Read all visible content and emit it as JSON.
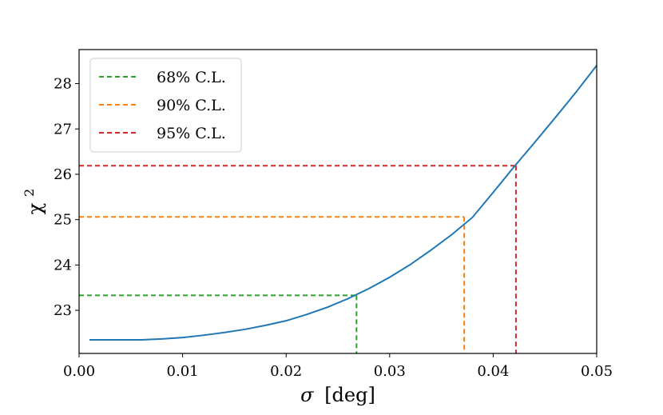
{
  "chart_data": {
    "type": "line",
    "xlabel_symbol": "σ",
    "xlabel_unit": "[deg]",
    "ylabel_base": "χ",
    "ylabel_sup": "2",
    "xlim": [
      0.0,
      0.05
    ],
    "ylim": [
      22.05,
      28.75
    ],
    "xticks": [
      0.0,
      0.01,
      0.02,
      0.03,
      0.04,
      0.05
    ],
    "xtick_labels": [
      "0.00",
      "0.01",
      "0.02",
      "0.03",
      "0.04",
      "0.05"
    ],
    "yticks": [
      23,
      24,
      25,
      26,
      27,
      28
    ],
    "ytick_labels": [
      "23",
      "24",
      "25",
      "26",
      "27",
      "28"
    ],
    "grid": false,
    "legend_position": "top-left",
    "curve": {
      "color": "#1f77b4",
      "x": [
        0.001,
        0.004,
        0.006,
        0.008,
        0.01,
        0.012,
        0.014,
        0.016,
        0.018,
        0.02,
        0.022,
        0.024,
        0.026,
        0.028,
        0.03,
        0.032,
        0.034,
        0.036,
        0.038,
        0.04,
        0.042,
        0.044,
        0.046,
        0.048,
        0.05
      ],
      "y": [
        22.35,
        22.35,
        22.35,
        22.37,
        22.4,
        22.45,
        22.51,
        22.58,
        22.67,
        22.77,
        22.91,
        23.07,
        23.26,
        23.48,
        23.73,
        24.01,
        24.33,
        24.67,
        25.05,
        25.6,
        26.16,
        26.7,
        27.25,
        27.81,
        28.4
      ]
    },
    "thresholds": [
      {
        "name": "68% C.L.",
        "color": "#2ca02c",
        "chi2": 23.33,
        "sigma": 0.0268
      },
      {
        "name": "90% C.L.",
        "color": "#ff7f0e",
        "chi2": 25.06,
        "sigma": 0.0372
      },
      {
        "name": "95% C.L.",
        "color": "#d62728",
        "chi2": 26.19,
        "sigma": 0.0422
      }
    ]
  }
}
